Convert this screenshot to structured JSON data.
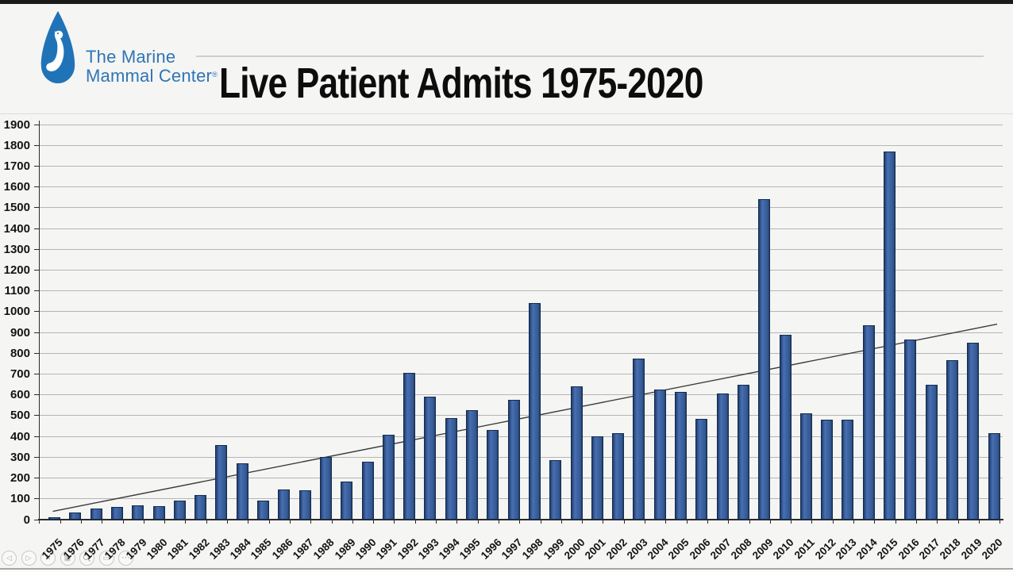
{
  "slide": {
    "background": "#f5f5f3",
    "top_strip_color": "#1a1a1a",
    "bottom_rule_color": "#a6a6a4"
  },
  "header": {
    "logo": {
      "line1": "The Marine",
      "line2": "Mammal Center",
      "registered_mark": "®",
      "brand_color": "#2e75b6",
      "drop_color": "#2173b8"
    },
    "title": "Live Patient Admits 1975-2020"
  },
  "chart_data": {
    "type": "bar",
    "title": "Live Patient Admits 1975-2020",
    "series_name": "Live patient admits",
    "categories": [
      "1975",
      "1976",
      "1977",
      "1978",
      "1979",
      "1980",
      "1981",
      "1982",
      "1983",
      "1984",
      "1985",
      "1986",
      "1987",
      "1988",
      "1989",
      "1990",
      "1991",
      "1992",
      "1993",
      "1994",
      "1995",
      "1996",
      "1997",
      "1998",
      "1999",
      "2000",
      "2001",
      "2002",
      "2003",
      "2004",
      "2005",
      "2006",
      "2007",
      "2008",
      "2009",
      "2010",
      "2011",
      "2012",
      "2013",
      "2014",
      "2015",
      "2016",
      "2017",
      "2018",
      "2019",
      "2020"
    ],
    "values": [
      10,
      35,
      55,
      60,
      70,
      65,
      90,
      120,
      360,
      270,
      90,
      145,
      140,
      300,
      185,
      280,
      410,
      705,
      590,
      490,
      525,
      430,
      575,
      1040,
      285,
      640,
      400,
      415,
      775,
      625,
      615,
      485,
      605,
      650,
      1540,
      890,
      510,
      480,
      480,
      935,
      1770,
      865,
      650,
      765,
      850,
      415
    ],
    "trendline": {
      "type": "linear",
      "start_year": "1975",
      "start_value": 40,
      "end_year": "2020",
      "end_value": 940
    },
    "xlabel": "",
    "ylabel": "",
    "ylim": [
      0,
      1900
    ],
    "ytick_step": 100,
    "grid": true,
    "legend": false,
    "colors": {
      "bar_fill": "#3a5f9f",
      "bar_border": "#142c50",
      "gridline": "#b5b5b5",
      "axis": "#2b2b2b",
      "trendline": "#3c3c3c",
      "tick_label": "#141414"
    }
  },
  "toolbar": {
    "buttons": [
      {
        "name": "previous-slide-button",
        "icon": "left-arrow-icon"
      },
      {
        "name": "next-slide-button",
        "icon": "right-arrow-icon"
      },
      {
        "name": "pen-tools-button",
        "icon": "pen-icon"
      },
      {
        "name": "see-all-slides-button",
        "icon": "grid-icon"
      },
      {
        "name": "zoom-slide-button",
        "icon": "magnifier-icon"
      },
      {
        "name": "captions-button",
        "icon": "captions-icon"
      },
      {
        "name": "more-options-button",
        "icon": "ellipsis-icon"
      }
    ]
  }
}
